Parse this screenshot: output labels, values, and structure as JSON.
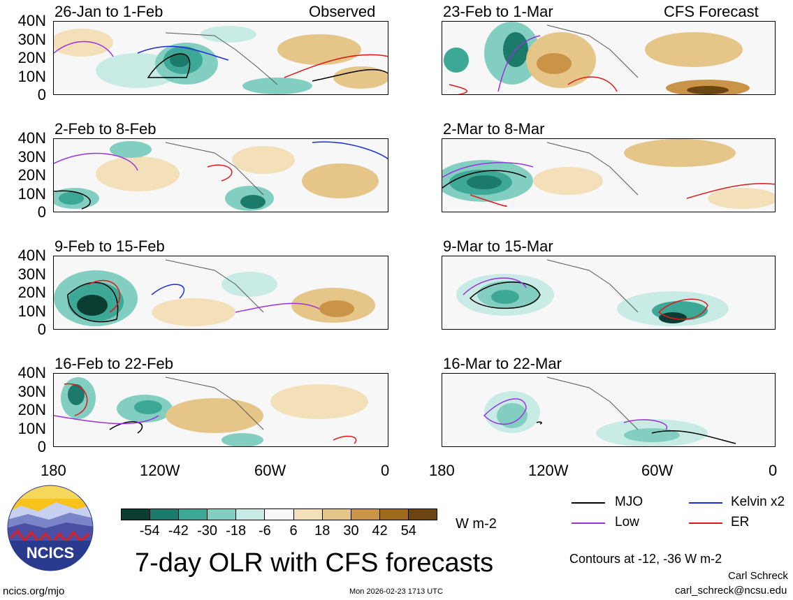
{
  "figure_title": "7-day OLR with CFS forecasts",
  "panel_type_labels": {
    "observed": "Observed",
    "forecast": "CFS Forecast"
  },
  "panels": [
    {
      "period": "26-Jan to 1-Feb"
    },
    {
      "period": "2-Feb to 8-Feb"
    },
    {
      "period": "9-Feb to 15-Feb"
    },
    {
      "period": "16-Feb to 22-Feb"
    },
    {
      "period": "23-Feb to 1-Mar"
    },
    {
      "period": "2-Mar to 8-Mar"
    },
    {
      "period": "9-Mar to 15-Mar"
    },
    {
      "period": "16-Mar to 22-Mar"
    }
  ],
  "y_axis_labels": [
    "40N",
    "30N",
    "20N",
    "10N",
    "0"
  ],
  "x_axis_labels": [
    "180",
    "120W",
    "60W",
    "0"
  ],
  "colorbar": {
    "tick_labels": [
      "-54",
      "-42",
      "-30",
      "-18",
      "-6",
      "6",
      "18",
      "30",
      "42",
      "54"
    ],
    "units": "W m-2",
    "colors": [
      "#0b3d33",
      "#1b7a6a",
      "#3ea896",
      "#82cfc1",
      "#c8ece5",
      "#f7f7f7",
      "#f3e0b8",
      "#e5c588",
      "#c99447",
      "#a06a1e",
      "#6b4510"
    ]
  },
  "legend": [
    {
      "label": "MJO",
      "color": "#000000"
    },
    {
      "label": "Kelvin x2",
      "color": "#1a2ed8"
    },
    {
      "label": "Low",
      "color": "#9b30e0"
    },
    {
      "label": "ER",
      "color": "#e01818"
    }
  ],
  "contour_note": "Contours at -12, -36 W m-2",
  "logo_text": "NCICS",
  "website": "ncics.org/mjo",
  "timestamp": "Mon 2026-02-23 1713 UTC",
  "author": "Carl Schreck",
  "email": "carl_schreck@ncsu.edu"
}
